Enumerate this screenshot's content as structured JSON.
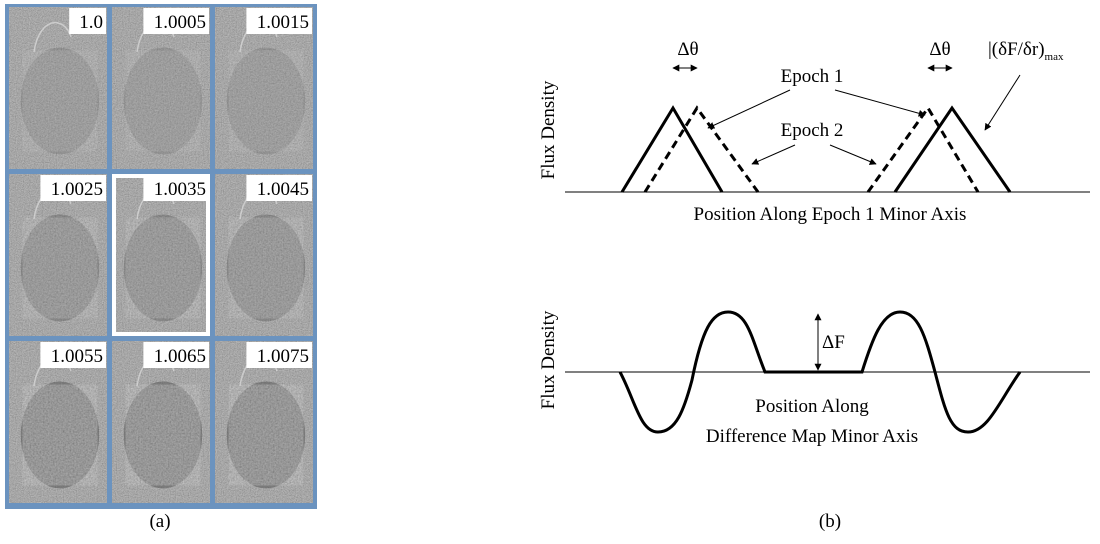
{
  "panel_a": {
    "caption": "(a)",
    "tiles": [
      "1.0",
      "1.0005",
      "1.0015",
      "1.0025",
      "1.0035",
      "1.0045",
      "1.0055",
      "1.0065",
      "1.0075"
    ]
  },
  "panel_b": {
    "caption": "(b)",
    "top": {
      "y_label": "Flux Density",
      "x_label": "Position Along Epoch 1 Minor Axis",
      "delta_theta": "Δθ",
      "epoch1": "Epoch 1",
      "epoch2": "Epoch 2",
      "gradient": "|(δF/δr)",
      "gradient_sub": "max"
    },
    "bottom": {
      "y_label": "Flux Density",
      "x_label_line1": "Position Along",
      "x_label_line2": "Difference Map Minor Axis",
      "delta_f": "ΔF"
    }
  }
}
